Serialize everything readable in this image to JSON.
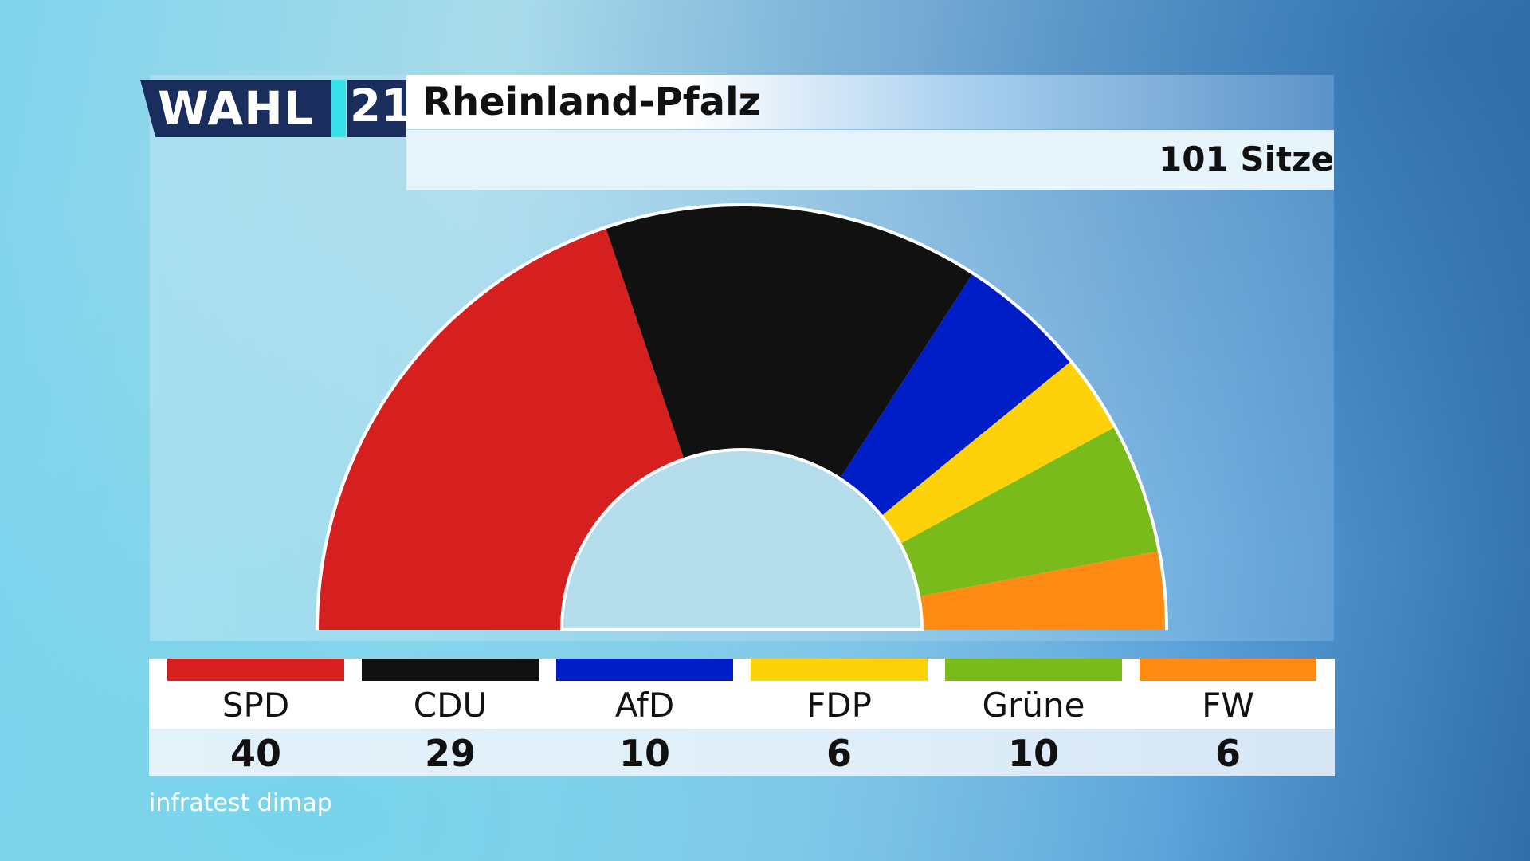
{
  "logo": {
    "wahl": "WAHL",
    "year": "21"
  },
  "header": {
    "title": "Rheinland-Pfalz",
    "seats_total_label": "101 Sitze"
  },
  "source": "infratest dimap",
  "chart_data": {
    "type": "parliament-semicircle",
    "title": "Rheinland-Pfalz",
    "total_seats": 101,
    "series": [
      {
        "name": "SPD",
        "seats": 40,
        "color": "#d61f1f"
      },
      {
        "name": "CDU",
        "seats": 29,
        "color": "#111111"
      },
      {
        "name": "AfD",
        "seats": 10,
        "color": "#001ec8"
      },
      {
        "name": "FDP",
        "seats": 6,
        "color": "#fdd20b"
      },
      {
        "name": "Grüne",
        "seats": 10,
        "color": "#79bb1b"
      },
      {
        "name": "FW",
        "seats": 6,
        "color": "#ff8a14"
      }
    ]
  }
}
